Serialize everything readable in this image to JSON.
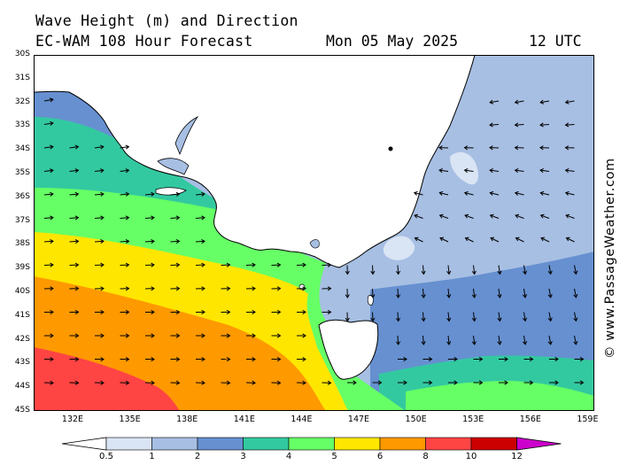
{
  "header": {
    "title": "Wave Height (m) and Direction",
    "subtitle": "EC-WAM 108 Hour Forecast",
    "date": "Mon 05 May 2025",
    "time": "12 UTC"
  },
  "credit": "© www.PassageWeather.com",
  "axes": {
    "lat_labels": [
      "30S",
      "31S",
      "32S",
      "33S",
      "34S",
      "35S",
      "36S",
      "37S",
      "38S",
      "39S",
      "40S",
      "41S",
      "42S",
      "43S",
      "44S",
      "45S"
    ],
    "lon_labels": [
      "132E",
      "135E",
      "138E",
      "141E",
      "144E",
      "147E",
      "150E",
      "153E",
      "156E",
      "159E"
    ]
  },
  "legend": {
    "labels": [
      "0.5",
      "1",
      "2",
      "3",
      "4",
      "5",
      "6",
      "8",
      "10",
      "12"
    ],
    "colors": [
      "#d9e4f4",
      "#a7bfe3",
      "#6690d0",
      "#33c9a0",
      "#66ff66",
      "#ffe600",
      "#ff9900",
      "#ff4444",
      "#cc0000",
      "#cc00cc"
    ]
  },
  "colors": {
    "land": "#ffffff",
    "coast": "#000000",
    "arrow": "#000000"
  }
}
